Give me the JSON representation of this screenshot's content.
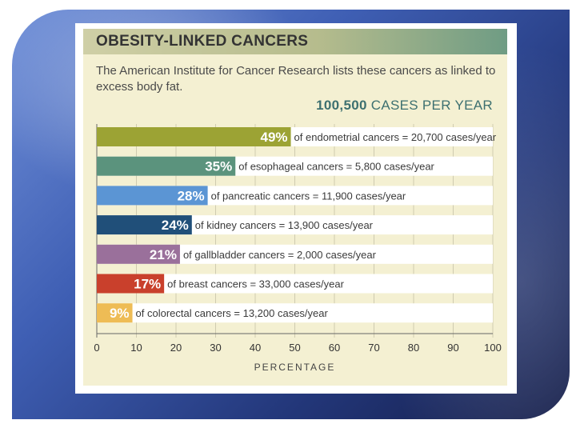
{
  "chart_data": {
    "type": "bar",
    "orientation": "horizontal",
    "title": "OBESITY-LINKED CANCERS",
    "subtitle": "The American Institute for Cancer Research lists these cancers as linked to excess body fat.",
    "total_label": "100,500",
    "total_suffix": "CASES PER YEAR",
    "xlabel": "PERCENTAGE",
    "xlim": [
      0,
      100
    ],
    "ticks": [
      0,
      10,
      20,
      30,
      40,
      50,
      60,
      70,
      80,
      90,
      100
    ],
    "bars": [
      {
        "value": 49,
        "label": "49%",
        "text": "of endometrial cancers = 20,700 cases/year",
        "color": "#9ca334"
      },
      {
        "value": 35,
        "label": "35%",
        "text": "of esophageal cancers = 5,800 cases/year",
        "color": "#5b937d"
      },
      {
        "value": 28,
        "label": "28%",
        "text": "of pancreatic cancers = 11,900 cases/year",
        "color": "#5b95d4"
      },
      {
        "value": 24,
        "label": "24%",
        "text": "of kidney cancers = 13,900 cases/year",
        "color": "#204f79"
      },
      {
        "value": 21,
        "label": "21%",
        "text": "of gallbladder cancers = 2,000 cases/year",
        "color": "#9a709b"
      },
      {
        "value": 17,
        "label": "17%",
        "text": "of breast cancers = 33,000 cases/year",
        "color": "#c9402c"
      },
      {
        "value": 9,
        "label": "9%",
        "text": "of colorectal cancers = 13,200 cases/year",
        "color": "#eebc55"
      }
    ]
  }
}
